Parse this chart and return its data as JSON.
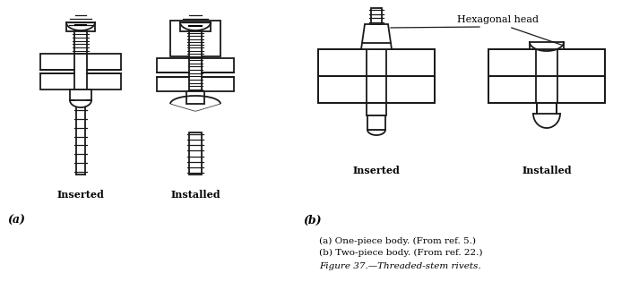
{
  "title": "Figure 37.—Threaded-stem rivets.",
  "caption_a": "(a) One-piece body. (From ref. 5.)",
  "caption_b": "(b) Two-piece body. (From ref. 22.)",
  "label_inserted_a": "Inserted",
  "label_installed_a": "Installed",
  "label_inserted_b": "Inserted",
  "label_installed_b": "Installed",
  "label_a": "(a)",
  "label_b": "(b)",
  "hexagonal_head": "Hexagonal head",
  "bg_color": "#ffffff",
  "line_color": "#1a1a1a",
  "lw": 1.3
}
